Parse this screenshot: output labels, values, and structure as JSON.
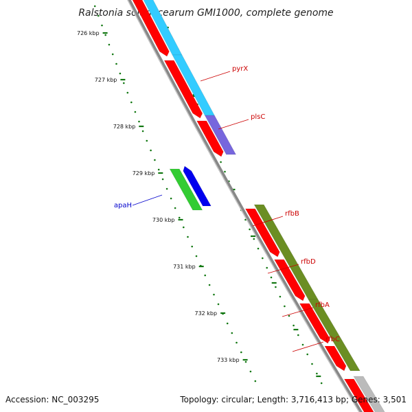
{
  "title": "Ralstonia solanacearum GMI1000, complete genome",
  "footer": {
    "accession": "Accession: NC_003295",
    "summary": "Topology: circular; Length: 3,716,413 bp; Genes: 3,501"
  },
  "colors": {
    "cds_red": "#ff0000",
    "cyan": "#33ccff",
    "purple": "#7766dd",
    "green_bright": "#33cc33",
    "blue": "#0000ee",
    "olive": "#6b8e23",
    "grey": "#bbbbbb",
    "backbone": "#888888",
    "tick_green": "#117711",
    "label_red": "#cc0000",
    "label_blue": "#0000cc"
  },
  "ticks": [
    {
      "label": "726 kbp"
    },
    {
      "label": "727 kbp"
    },
    {
      "label": "728 kbp"
    },
    {
      "label": "729 kbp"
    },
    {
      "label": "730 kbp"
    },
    {
      "label": "731 kbp"
    },
    {
      "label": "732 kbp"
    },
    {
      "label": "733 kbp"
    }
  ],
  "gene_labels": [
    {
      "name": "pyrX",
      "color": "label_red"
    },
    {
      "name": "plsC",
      "color": "label_red"
    },
    {
      "name": "apaH",
      "color": "label_blue"
    },
    {
      "name": "rfbB",
      "color": "label_red"
    },
    {
      "name": "rfbD",
      "color": "label_red"
    },
    {
      "name": "rfbA",
      "color": "label_red"
    },
    {
      "name": "rfbC",
      "color": "label_red"
    }
  ]
}
